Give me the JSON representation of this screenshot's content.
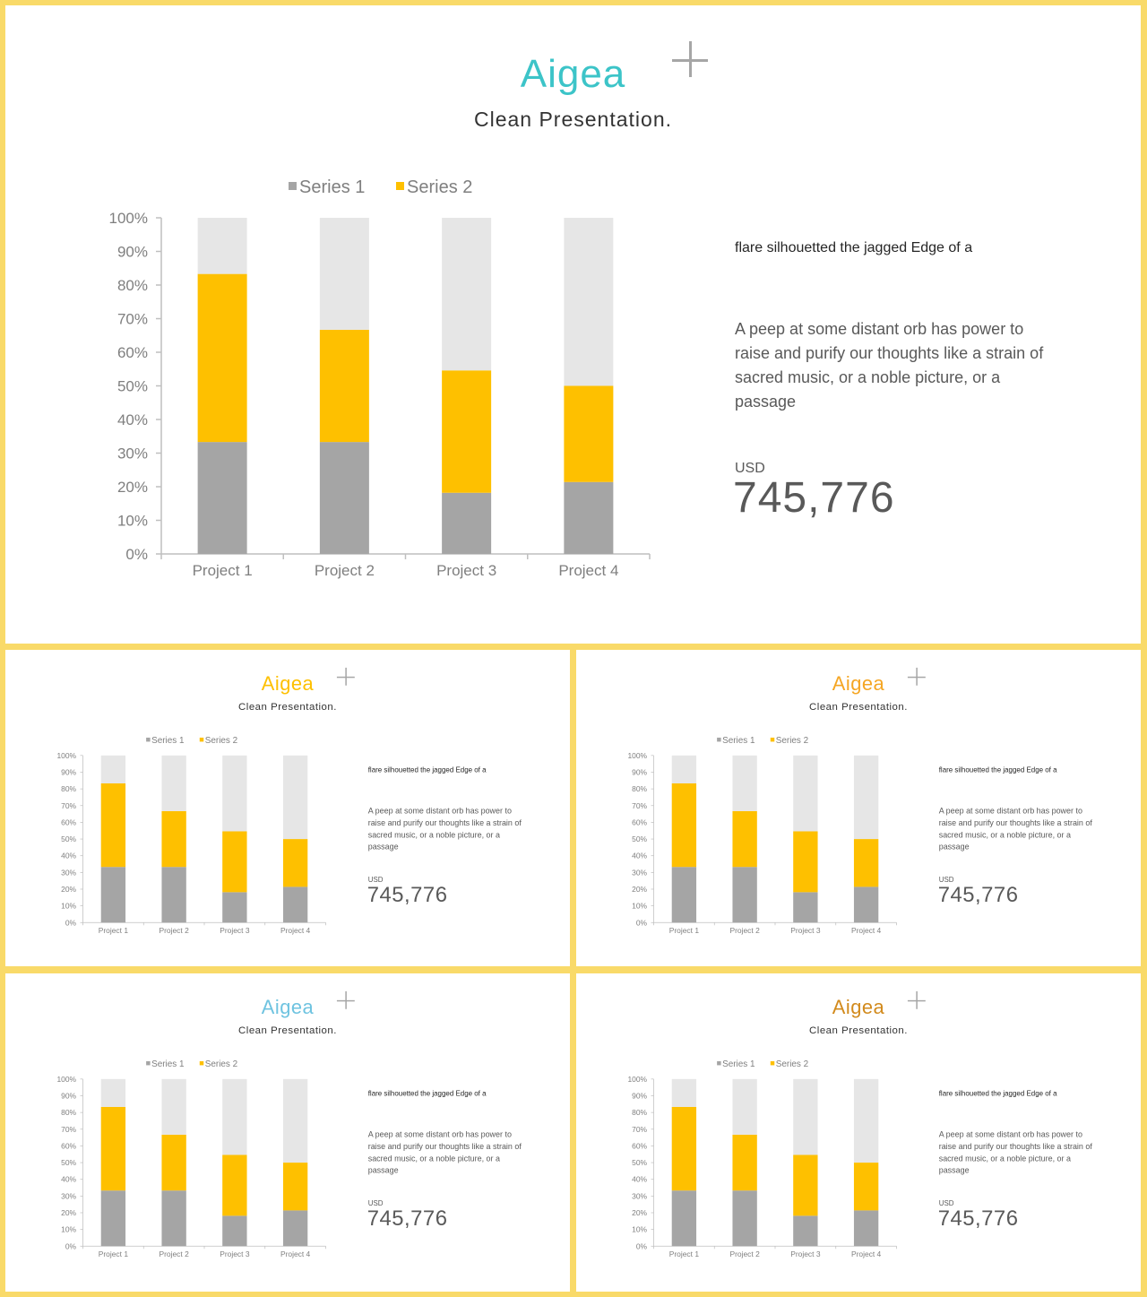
{
  "slides": [
    {
      "title": "Aigea",
      "title_color": "#3cc4c8"
    },
    {
      "title": "Aigea",
      "title_color": "#fec000"
    },
    {
      "title": "Aigea",
      "title_color": "#f5a623"
    },
    {
      "title": "Aigea",
      "title_color": "#6ec3e0"
    },
    {
      "title": "Aigea",
      "title_color": "#d28a1c"
    }
  ],
  "subtitle": "Clean Presentation.",
  "decor_icon": "plus-icon",
  "flare_text": "flare silhouetted the jagged Edge of a",
  "body_text": "A peep at some distant orb has power to raise and purify our thoughts like a strain of sacred music, or a noble picture, or a passage",
  "currency_label": "USD",
  "amount": "745,776",
  "chart_data": {
    "type": "bar",
    "stacked": "100%",
    "categories": [
      "Project 1",
      "Project 2",
      "Project 3",
      "Project 4"
    ],
    "series": [
      {
        "name": "Series 1",
        "values": [
          33.3,
          33.3,
          18.2,
          21.4
        ],
        "color": "#a5a5a5"
      },
      {
        "name": "Series 2",
        "values": [
          50.0,
          33.4,
          36.4,
          28.6
        ],
        "color": "#fec000"
      },
      {
        "values": [
          16.7,
          33.3,
          45.4,
          50.0
        ],
        "color": "#e6e6e6"
      }
    ],
    "y_ticks": [
      "0%",
      "10%",
      "20%",
      "30%",
      "40%",
      "50%",
      "60%",
      "70%",
      "80%",
      "90%",
      "100%"
    ],
    "ylim": [
      0,
      100
    ],
    "legend_position": "top",
    "grid": false
  }
}
